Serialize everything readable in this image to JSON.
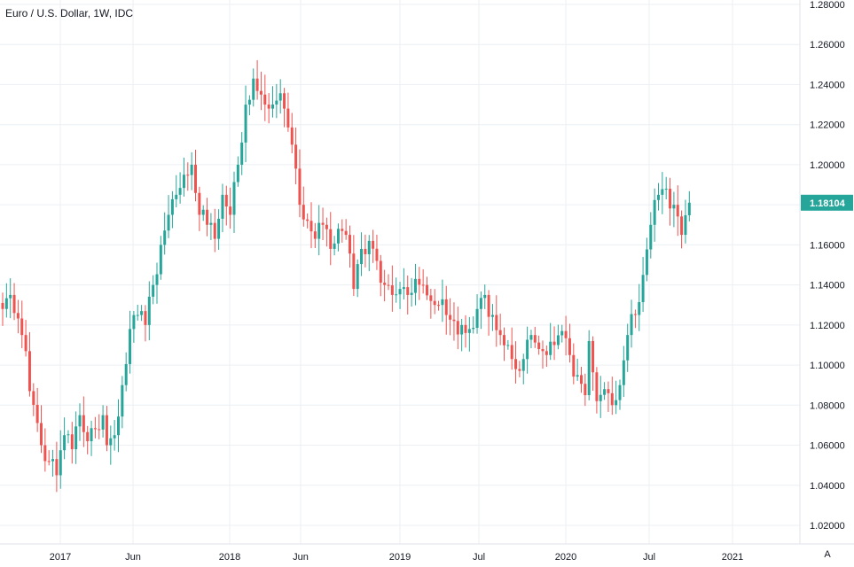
{
  "chart_data": {
    "type": "candlestick",
    "title": "Euro / U.S. Dollar, 1W, IDC",
    "last_price": "1.18104",
    "auto_label": "A",
    "colors": {
      "up": "#26a69a",
      "down": "#ef5350",
      "price_tag": "#26a69a",
      "grid": "#eceff3"
    },
    "ylim": [
      1.01,
      1.28
    ],
    "y_ticks": [
      "1.02000",
      "1.04000",
      "1.06000",
      "1.08000",
      "1.10000",
      "1.12000",
      "1.14000",
      "1.16000",
      "1.18000",
      "1.20000",
      "1.22000",
      "1.24000",
      "1.26000",
      "1.28000"
    ],
    "x_ticks": [
      "2017",
      "Jun",
      "2018",
      "Jun",
      "2019",
      "Jul",
      "2020",
      "Jul",
      "2021"
    ],
    "grid": true,
    "anchors": [
      {
        "w": 0,
        "v": 1.128
      },
      {
        "w": 2,
        "v": 1.135
      },
      {
        "w": 5,
        "v": 1.115
      },
      {
        "w": 7,
        "v": 1.087
      },
      {
        "w": 10,
        "v": 1.06
      },
      {
        "w": 12,
        "v": 1.052
      },
      {
        "w": 14,
        "v": 1.045
      },
      {
        "w": 16,
        "v": 1.065
      },
      {
        "w": 18,
        "v": 1.058
      },
      {
        "w": 20,
        "v": 1.075
      },
      {
        "w": 22,
        "v": 1.062
      },
      {
        "w": 24,
        "v": 1.068
      },
      {
        "w": 26,
        "v": 1.075
      },
      {
        "w": 27,
        "v": 1.06
      },
      {
        "w": 29,
        "v": 1.065
      },
      {
        "w": 31,
        "v": 1.09
      },
      {
        "w": 33,
        "v": 1.118
      },
      {
        "w": 35,
        "v": 1.125
      },
      {
        "w": 37,
        "v": 1.12
      },
      {
        "w": 39,
        "v": 1.14
      },
      {
        "w": 41,
        "v": 1.16
      },
      {
        "w": 43,
        "v": 1.175
      },
      {
        "w": 45,
        "v": 1.185
      },
      {
        "w": 47,
        "v": 1.195
      },
      {
        "w": 49,
        "v": 1.2
      },
      {
        "w": 51,
        "v": 1.175
      },
      {
        "w": 53,
        "v": 1.17
      },
      {
        "w": 55,
        "v": 1.163
      },
      {
        "w": 57,
        "v": 1.185
      },
      {
        "w": 59,
        "v": 1.175
      },
      {
        "w": 61,
        "v": 1.2
      },
      {
        "w": 63,
        "v": 1.23
      },
      {
        "w": 65,
        "v": 1.243
      },
      {
        "w": 67,
        "v": 1.235
      },
      {
        "w": 69,
        "v": 1.228
      },
      {
        "w": 71,
        "v": 1.232
      },
      {
        "w": 73,
        "v": 1.228
      },
      {
        "w": 75,
        "v": 1.21
      },
      {
        "w": 77,
        "v": 1.18
      },
      {
        "w": 79,
        "v": 1.172
      },
      {
        "w": 81,
        "v": 1.163
      },
      {
        "w": 83,
        "v": 1.17
      },
      {
        "w": 85,
        "v": 1.158
      },
      {
        "w": 87,
        "v": 1.168
      },
      {
        "w": 89,
        "v": 1.165
      },
      {
        "w": 91,
        "v": 1.138
      },
      {
        "w": 93,
        "v": 1.158
      },
      {
        "w": 95,
        "v": 1.162
      },
      {
        "w": 97,
        "v": 1.152
      },
      {
        "w": 99,
        "v": 1.14
      },
      {
        "w": 101,
        "v": 1.135
      },
      {
        "w": 103,
        "v": 1.138
      },
      {
        "w": 105,
        "v": 1.135
      },
      {
        "w": 107,
        "v": 1.143
      },
      {
        "w": 109,
        "v": 1.14
      },
      {
        "w": 111,
        "v": 1.132
      },
      {
        "w": 113,
        "v": 1.13
      },
      {
        "w": 115,
        "v": 1.125
      },
      {
        "w": 117,
        "v": 1.122
      },
      {
        "w": 119,
        "v": 1.12
      },
      {
        "w": 121,
        "v": 1.118
      },
      {
        "w": 123,
        "v": 1.128
      },
      {
        "w": 125,
        "v": 1.135
      },
      {
        "w": 127,
        "v": 1.125
      },
      {
        "w": 129,
        "v": 1.115
      },
      {
        "w": 131,
        "v": 1.11
      },
      {
        "w": 133,
        "v": 1.098
      },
      {
        "w": 135,
        "v": 1.103
      },
      {
        "w": 137,
        "v": 1.115
      },
      {
        "w": 139,
        "v": 1.108
      },
      {
        "w": 141,
        "v": 1.105
      },
      {
        "w": 143,
        "v": 1.11
      },
      {
        "w": 145,
        "v": 1.117
      },
      {
        "w": 147,
        "v": 1.105
      },
      {
        "w": 149,
        "v": 1.095
      },
      {
        "w": 151,
        "v": 1.085
      },
      {
        "w": 152,
        "v": 1.112
      },
      {
        "w": 154,
        "v": 1.082
      },
      {
        "w": 156,
        "v": 1.088
      },
      {
        "w": 158,
        "v": 1.08
      },
      {
        "w": 160,
        "v": 1.09
      },
      {
        "w": 162,
        "v": 1.115
      },
      {
        "w": 164,
        "v": 1.125
      },
      {
        "w": 166,
        "v": 1.145
      },
      {
        "w": 168,
        "v": 1.17
      },
      {
        "w": 170,
        "v": 1.185
      },
      {
        "w": 172,
        "v": 1.188
      },
      {
        "w": 174,
        "v": 1.18
      },
      {
        "w": 176,
        "v": 1.165
      },
      {
        "w": 178,
        "v": 1.181
      }
    ]
  }
}
